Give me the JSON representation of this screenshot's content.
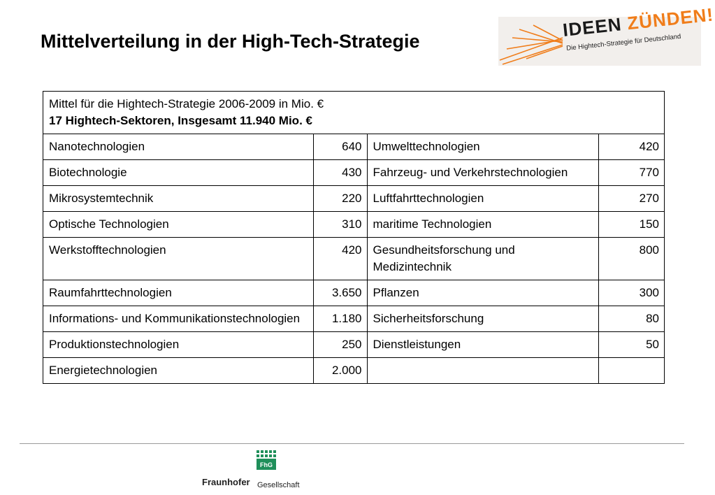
{
  "slide": {
    "title": "Mittelverteilung in der High-Tech-Strategie"
  },
  "logo": {
    "word1": "IDEEN",
    "word2": "ZÜNDEN!",
    "subtitle": "Die Hightech-Strategie für Deutschland",
    "accent_color": "#f07d1a"
  },
  "table": {
    "header_line1": "Mittel für die Hightech-Strategie 2006-2009 in Mio. €",
    "header_line2": "17 Hightech-Sektoren, Insgesamt 11.940 Mio. €",
    "rows": [
      {
        "left_label": "Nanotechnologien",
        "left_value": "640",
        "right_label": "Umwelttechnologien",
        "right_value": "420"
      },
      {
        "left_label": "Biotechnologie",
        "left_value": "430",
        "right_label": "Fahrzeug- und Verkehrstechnologien",
        "right_value": "770"
      },
      {
        "left_label": "Mikrosystemtechnik",
        "left_value": "220",
        "right_label": "Luftfahrttechnologien",
        "right_value": "270"
      },
      {
        "left_label": "Optische Technologien",
        "left_value": "310",
        "right_label": "maritime Technologien",
        "right_value": "150"
      },
      {
        "left_label": "Werkstofftechnologien",
        "left_value": "420",
        "right_label": "Gesundheitsforschung und Medizintechnik",
        "right_value": "800"
      },
      {
        "left_label": "Raumfahrttechnologien",
        "left_value": "3.650",
        "right_label": "Pflanzen",
        "right_value": "300"
      },
      {
        "left_label": "Informations- und Kommunikationstechnologien",
        "left_value": "1.180",
        "right_label": "Sicherheitsforschung",
        "right_value": "80"
      },
      {
        "left_label": "Produktionstechnologien",
        "left_value": "250",
        "right_label": "Dienstleistungen",
        "right_value": "50"
      },
      {
        "left_label": "Energietechnologien",
        "left_value": "2.000",
        "right_label": "",
        "right_value": ""
      }
    ]
  },
  "footer": {
    "emblem_text": "FhG",
    "org_name": "Fraunhofer",
    "org_suffix": "Gesellschaft",
    "emblem_color": "#1f8f5a"
  }
}
